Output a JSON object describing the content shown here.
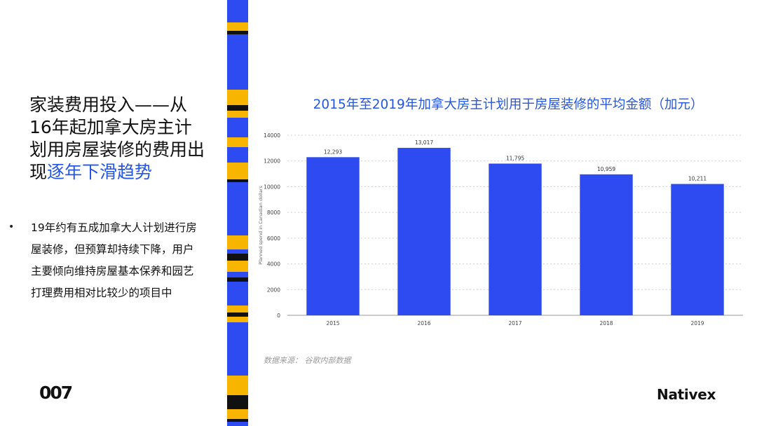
{
  "heading": {
    "line_main": "家装费用投入——从16年起加拿大房主计划用房屋装修的费用出现",
    "line_highlight": "逐年下滑趋势"
  },
  "bullet": {
    "marker": "•",
    "text": "19年约有五成加拿大人计划进行房屋装修，但预算却持续下降，用户主要倾向维持房屋基本保养和园艺打理费用相对比较少的项目中"
  },
  "logo_left": "007",
  "brand": "Nativex",
  "source_note": "数据来源：  谷歌内部数据",
  "colors": {
    "accent": "#2456e8",
    "bar": "#2d4bf0",
    "stripe_blue": "#2d4bf0",
    "stripe_yellow": "#f7b500",
    "stripe_black": "#111111"
  },
  "chart_data": {
    "type": "bar",
    "title": "2015年至2019年加拿大房主计划用于房屋装修的平均金额（加元）",
    "xlabel": "",
    "ylabel": "Planned spend in Canadian dollars",
    "categories": [
      "2015",
      "2016",
      "2017",
      "2018",
      "2019"
    ],
    "values": [
      12293,
      13017,
      11795,
      10959,
      10211
    ],
    "value_labels": [
      "12,293",
      "13,017",
      "11,795",
      "10,959",
      "10,211"
    ],
    "y_ticks": [
      0,
      2000,
      4000,
      6000,
      8000,
      10000,
      12000,
      14000
    ],
    "ylim": [
      0,
      14000
    ],
    "grid": true
  }
}
